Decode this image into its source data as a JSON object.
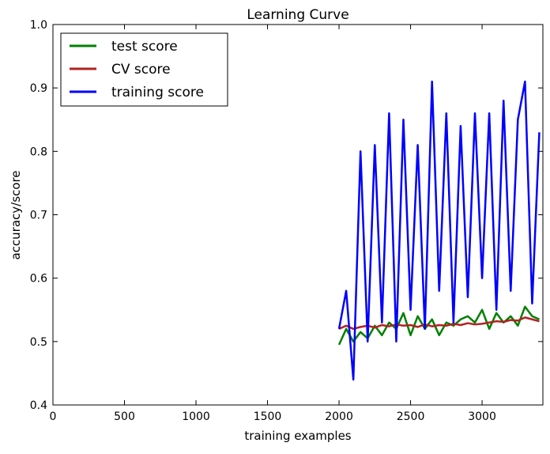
{
  "chart_data": {
    "type": "line",
    "title": "Learning Curve",
    "xlabel": "training examples",
    "ylabel": "accuracy/score",
    "xlim": [
      0,
      3425
    ],
    "ylim": [
      0.4,
      1.0
    ],
    "xticks": [
      0,
      500,
      1000,
      1500,
      2000,
      2500,
      3000
    ],
    "yticks": [
      0.4,
      0.5,
      0.6,
      0.7,
      0.8,
      0.9,
      1.0
    ],
    "xtick_labels": [
      "0",
      "500",
      "1000",
      "1500",
      "2000",
      "2500",
      "3000"
    ],
    "ytick_labels": [
      "0.4",
      "0.5",
      "0.6",
      "0.7",
      "0.8",
      "0.9",
      "1.0"
    ],
    "grid": false,
    "legend_position": "top-left",
    "x": [
      2000,
      2050,
      2100,
      2150,
      2200,
      2250,
      2300,
      2350,
      2400,
      2450,
      2500,
      2550,
      2600,
      2650,
      2700,
      2750,
      2800,
      2850,
      2900,
      2950,
      3000,
      3050,
      3100,
      3150,
      3200,
      3250,
      3300,
      3350,
      3400
    ],
    "series": [
      {
        "name": "test score",
        "color": "#008000",
        "values": [
          0.495,
          0.52,
          0.5,
          0.515,
          0.505,
          0.525,
          0.51,
          0.53,
          0.52,
          0.545,
          0.51,
          0.54,
          0.52,
          0.535,
          0.51,
          0.53,
          0.525,
          0.535,
          0.54,
          0.53,
          0.55,
          0.52,
          0.545,
          0.53,
          0.54,
          0.525,
          0.555,
          0.54,
          0.535
        ]
      },
      {
        "name": "CV score",
        "color": "#b22222",
        "values": [
          0.52,
          0.525,
          0.52,
          0.523,
          0.525,
          0.522,
          0.526,
          0.524,
          0.527,
          0.525,
          0.526,
          0.523,
          0.527,
          0.524,
          0.526,
          0.525,
          0.528,
          0.526,
          0.529,
          0.527,
          0.528,
          0.53,
          0.532,
          0.531,
          0.534,
          0.533,
          0.538,
          0.535,
          0.532
        ]
      },
      {
        "name": "training score",
        "color": "#0000ff",
        "values": [
          0.52,
          0.58,
          0.44,
          0.8,
          0.5,
          0.81,
          0.53,
          0.86,
          0.5,
          0.85,
          0.55,
          0.81,
          0.52,
          0.91,
          0.58,
          0.86,
          0.53,
          0.84,
          0.57,
          0.86,
          0.6,
          0.86,
          0.55,
          0.88,
          0.58,
          0.85,
          0.91,
          0.56,
          0.83
        ]
      }
    ]
  }
}
